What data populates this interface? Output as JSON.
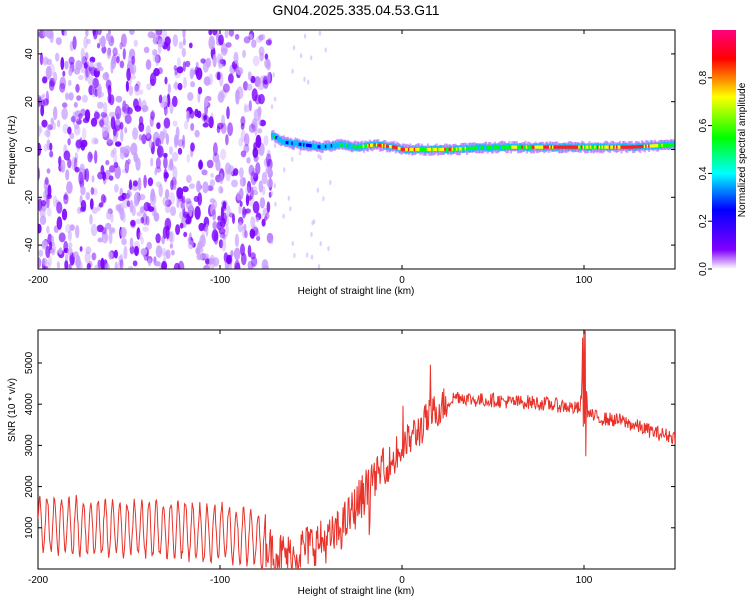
{
  "title": "GN04.2025.335.04.53.G11",
  "chart_data": [
    {
      "type": "heatmap",
      "xlabel": "Height of straight line (km)",
      "ylabel": "Frequency (Hz)",
      "xlim": [
        -200,
        150
      ],
      "ylim": [
        -50,
        50
      ],
      "x_ticks": [
        "-200",
        "-100",
        "0",
        "100"
      ],
      "y_ticks": [
        "40",
        "20",
        "0",
        "-20",
        "-40"
      ],
      "noise_region_x": [
        -200,
        -72
      ],
      "ridge": {
        "x": [
          -72,
          -65,
          -55,
          -45,
          -35,
          -25,
          -15,
          -5,
          0,
          10,
          25,
          50,
          75,
          95,
          100,
          125,
          150
        ],
        "frequency": [
          6,
          3,
          2,
          1,
          2,
          1,
          2,
          1,
          0,
          0,
          0,
          1,
          1,
          1,
          1,
          1,
          2
        ],
        "amplitude": [
          0.55,
          0.5,
          0.45,
          0.5,
          0.55,
          0.65,
          0.85,
          0.9,
          0.95,
          0.7,
          0.8,
          0.6,
          0.85,
          0.95,
          0.7,
          0.95,
          0.6
        ]
      },
      "colorbar": {
        "label": "Normalized spectral amplitude",
        "ticks": [
          "0.0",
          "0.2",
          "0.4",
          "0.6",
          "0.8"
        ],
        "range": [
          0,
          1
        ],
        "colors": [
          "#ffffff",
          "#8000ff",
          "#0000ff",
          "#00ffff",
          "#00ff00",
          "#ffff00",
          "#ff0000",
          "#ff0080"
        ]
      },
      "colors": {
        "noise": "#7a00ff",
        "noise_light": "#c8a0ff",
        "ridge_low": "#8000ff",
        "ridge_mid": "#00ff00",
        "ridge_high": "#ff2020"
      }
    },
    {
      "type": "line",
      "xlabel": "Height of straight line (km)",
      "ylabel": "SNR (10 * v/v)",
      "xlim": [
        -200,
        150
      ],
      "ylim": [
        0,
        5800
      ],
      "x_ticks": [
        "-200",
        "-100",
        "0",
        "100"
      ],
      "y_ticks": [
        "5000",
        "4000",
        "3000",
        "2000",
        "1000"
      ],
      "series": [
        {
          "color": "#e8322a",
          "x": [
            -200,
            -190,
            -180,
            -170,
            -160,
            -150,
            -140,
            -130,
            -120,
            -110,
            -100,
            -90,
            -80,
            -75,
            -70,
            -65,
            -60,
            -55,
            -50,
            -45,
            -40,
            -35,
            -30,
            -25,
            -20,
            -15,
            -10,
            -5,
            0,
            5,
            10,
            15,
            20,
            25,
            30,
            35,
            40,
            50,
            60,
            70,
            80,
            90,
            95,
            98,
            100,
            102,
            105,
            110,
            120,
            130,
            140,
            150
          ],
          "values": [
            1100,
            1050,
            1050,
            1000,
            1000,
            980,
            1000,
            950,
            980,
            850,
            900,
            800,
            750,
            600,
            400,
            350,
            300,
            500,
            600,
            650,
            700,
            900,
            1200,
            1550,
            1900,
            2200,
            2500,
            2600,
            2900,
            3200,
            3400,
            3700,
            3900,
            4050,
            4200,
            4150,
            4100,
            4100,
            4050,
            4050,
            4000,
            3950,
            3900,
            3900,
            5200,
            3800,
            3700,
            3650,
            3600,
            3450,
            3300,
            3200
          ]
        }
      ]
    }
  ]
}
